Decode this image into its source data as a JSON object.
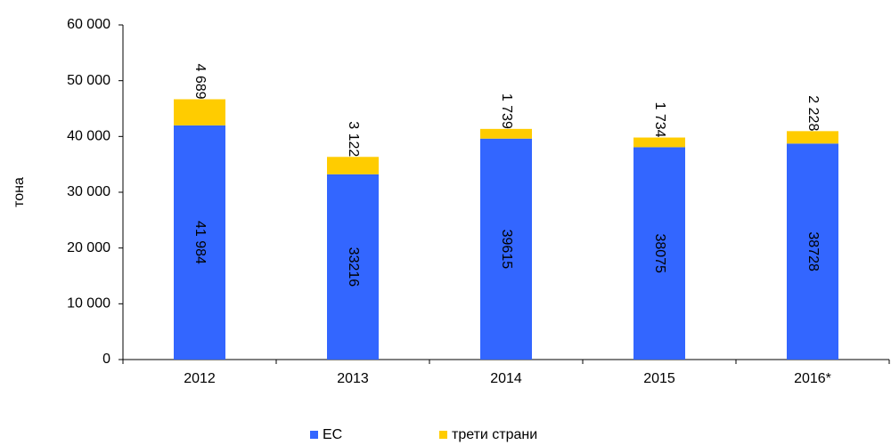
{
  "chart_data": {
    "type": "stacked_bar",
    "y_label": "тона",
    "categories": [
      "2012",
      "2013",
      "2014",
      "2015",
      "2016*"
    ],
    "series": [
      {
        "name": "ЕС",
        "color": "#3366ff",
        "values": [
          41984,
          33216,
          39615,
          38075,
          38728
        ],
        "value_labels": [
          "41 984",
          "33216",
          "39615",
          "38075",
          "38728"
        ]
      },
      {
        "name": "трети страни",
        "color": "#ffcc00",
        "values": [
          4689,
          3122,
          1739,
          1734,
          2228
        ],
        "value_labels": [
          "4 689",
          "3 122",
          "1 739",
          "1 734",
          "2 228"
        ]
      }
    ],
    "ylim": [
      0,
      60000
    ],
    "yticks": [
      0,
      {
        "value": 10000,
        "label": "10 000"
      },
      {
        "value": 20000,
        "label": "20 000"
      },
      {
        "value": 30000,
        "label": "30 000"
      },
      {
        "value": 40000,
        "label": "40 000"
      },
      {
        "value": 50000,
        "label": "50 000"
      },
      {
        "value": 60000,
        "label": "60 000"
      }
    ],
    "legend": "bottom"
  }
}
